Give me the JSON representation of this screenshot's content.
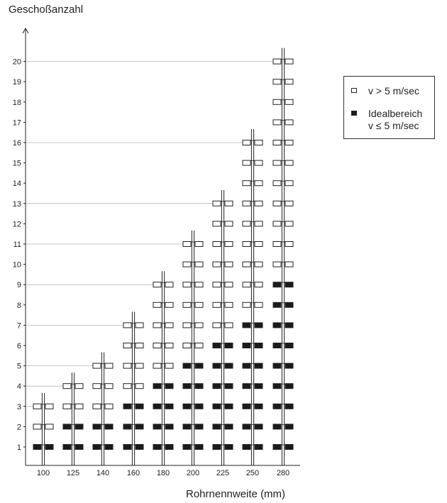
{
  "colors": {
    "over_limit": "#ffffff",
    "ideal": "#1a1a1a",
    "stroke": "#222222",
    "grid": "#b8b8b8"
  },
  "chart_data": {
    "type": "scatter",
    "title": "",
    "xlabel": "Rohrnennweite (mm)",
    "ylabel": "Geschoßanzahl",
    "categories": [
      "100",
      "125",
      "140",
      "160",
      "180",
      "200",
      "225",
      "250",
      "280"
    ],
    "yticks": [
      "1",
      "2",
      "3",
      "4",
      "5",
      "6",
      "7",
      "8",
      "9",
      "10",
      "11",
      "12",
      "13",
      "14",
      "15",
      "16",
      "17",
      "18",
      "19",
      "20"
    ],
    "ylim": [
      0,
      21
    ],
    "max_floors": [
      3,
      4,
      5,
      7,
      9,
      11,
      13,
      16,
      20
    ],
    "ideal_max_floors": [
      1,
      2,
      2,
      3,
      4,
      5,
      6,
      7,
      9
    ],
    "grid": "horizontal lines at each column's maximum floor count",
    "series": [
      {
        "name": "v > 5 m/sec",
        "marker": "open-rectangle"
      },
      {
        "name": "Idealbereich v ≤ 5 m/sec",
        "marker": "filled-rectangle"
      }
    ],
    "legend_placement": "right"
  },
  "legend": {
    "over_label": "v > 5 m/sec",
    "ideal_label_line1": "Idealbereich",
    "ideal_label_line2": "v ≤ 5 m/sec"
  }
}
